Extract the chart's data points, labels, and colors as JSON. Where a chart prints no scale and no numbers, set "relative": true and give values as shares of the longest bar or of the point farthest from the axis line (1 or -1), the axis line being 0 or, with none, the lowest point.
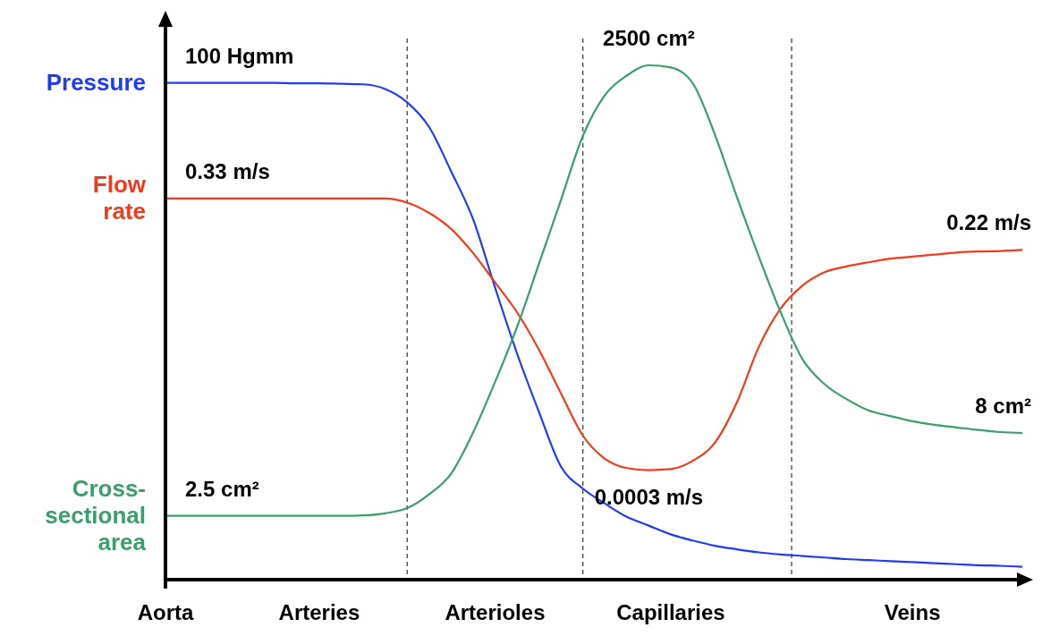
{
  "chart_data": {
    "type": "line",
    "relative": true,
    "categories": [
      "Aorta",
      null,
      null,
      null,
      null,
      null,
      null,
      "Arteries",
      null,
      null,
      null,
      null,
      null,
      null,
      null,
      "Arterioles",
      null,
      null,
      null,
      null,
      null,
      null,
      null,
      "Capillaries",
      null,
      null,
      null,
      null,
      null,
      null,
      null,
      null,
      null,
      null,
      "Veins",
      null,
      null,
      null,
      null,
      null
    ],
    "series": [
      {
        "name": "Pressure",
        "color": "#1f3cf0",
        "values": [
          0.966,
          0.966,
          0.966,
          0.966,
          0.966,
          0.966,
          0.965,
          0.965,
          0.964,
          0.963,
          0.954,
          0.928,
          0.88,
          0.794,
          0.701,
          0.568,
          0.44,
          0.326,
          0.22,
          0.177,
          0.148,
          0.122,
          0.105,
          0.088,
          0.076,
          0.066,
          0.059,
          0.053,
          0.049,
          0.046,
          0.043,
          0.04,
          0.038,
          0.036,
          0.034,
          0.032,
          0.03,
          0.028,
          0.027,
          0.025
        ]
      },
      {
        "name": "Flow rate",
        "color": "#f03c1e",
        "values": [
          0.741,
          0.741,
          0.741,
          0.741,
          0.741,
          0.741,
          0.741,
          0.741,
          0.741,
          0.741,
          0.741,
          0.733,
          0.713,
          0.682,
          0.635,
          0.578,
          0.52,
          0.447,
          0.362,
          0.28,
          0.235,
          0.217,
          0.213,
          0.215,
          0.231,
          0.266,
          0.344,
          0.452,
          0.527,
          0.572,
          0.598,
          0.609,
          0.617,
          0.624,
          0.628,
          0.632,
          0.636,
          0.638,
          0.639,
          0.641
        ]
      },
      {
        "name": "Cross-sectional area",
        "color": "#3a9e6e",
        "values": [
          0.124,
          0.124,
          0.124,
          0.124,
          0.124,
          0.124,
          0.124,
          0.124,
          0.124,
          0.125,
          0.129,
          0.139,
          0.166,
          0.206,
          0.286,
          0.384,
          0.491,
          0.614,
          0.738,
          0.863,
          0.942,
          0.98,
          1.0,
          0.996,
          0.965,
          0.866,
          0.745,
          0.629,
          0.52,
          0.428,
          0.38,
          0.351,
          0.329,
          0.318,
          0.308,
          0.301,
          0.296,
          0.291,
          0.287,
          0.285
        ]
      }
    ],
    "annotations": [
      {
        "text": "100 Hgmm",
        "y": 0.966
      },
      {
        "text": "0.33 m/s",
        "y": 0.741
      },
      {
        "text": "2.5 cm²",
        "y": 0.124
      },
      {
        "text": "2500 cm²",
        "y": 1.0
      },
      {
        "text": "0.0003 m/s",
        "y": 0.213
      },
      {
        "text": "0.22 m/s",
        "y": 0.641
      },
      {
        "text": "8 cm²",
        "y": 0.285
      }
    ],
    "marker": "none",
    "line_style": "solid"
  }
}
